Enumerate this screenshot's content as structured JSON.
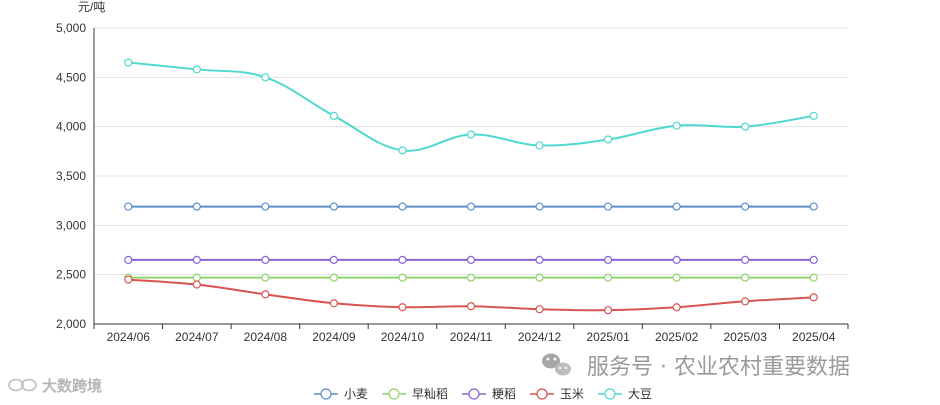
{
  "chart_data": {
    "type": "line",
    "ylabel": "元/吨",
    "ylim": [
      2000,
      5000
    ],
    "yticks": [
      2000,
      2500,
      3000,
      3500,
      4000,
      4500,
      5000
    ],
    "ytick_labels": [
      "2,000",
      "2,500",
      "3,000",
      "3,500",
      "4,000",
      "4,500",
      "5,000"
    ],
    "categories": [
      "2024/06",
      "2024/07",
      "2024/08",
      "2024/09",
      "2024/10",
      "2024/11",
      "2024/12",
      "2025/01",
      "2025/02",
      "2025/03",
      "2025/04"
    ],
    "grid": true,
    "legend_position": "bottom-center",
    "series": [
      {
        "name": "小麦",
        "color": "#5b8ec7",
        "values": [
          3190,
          3190,
          3190,
          3190,
          3190,
          3190,
          3190,
          3190,
          3190,
          3190,
          3190
        ]
      },
      {
        "name": "早籼稻",
        "color": "#91d36b",
        "values": [
          2470,
          2470,
          2470,
          2470,
          2470,
          2470,
          2470,
          2470,
          2470,
          2470,
          2470
        ]
      },
      {
        "name": "粳稻",
        "color": "#8a64d6",
        "values": [
          2650,
          2650,
          2650,
          2650,
          2650,
          2650,
          2650,
          2650,
          2650,
          2650,
          2650
        ]
      },
      {
        "name": "玉米",
        "color": "#d9534f",
        "values": [
          2450,
          2400,
          2300,
          2210,
          2170,
          2180,
          2150,
          2140,
          2170,
          2230,
          2270
        ]
      },
      {
        "name": "大豆",
        "color": "#4fd8cf",
        "values": [
          4650,
          4580,
          4500,
          4110,
          3760,
          3920,
          3810,
          3870,
          4010,
          4000,
          4110
        ]
      }
    ]
  },
  "watermark": {
    "right_text": "服务号 · 农业农村重要数据",
    "left_text": "大数跨境"
  }
}
